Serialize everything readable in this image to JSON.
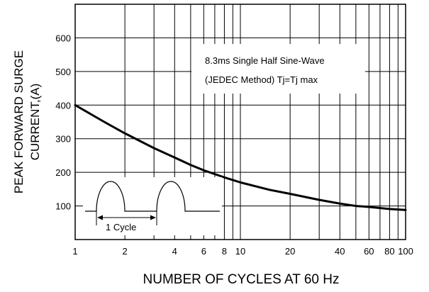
{
  "chart_data": {
    "type": "line",
    "title": "",
    "xlabel": "NUMBER OF CYCLES AT 60 Hz",
    "ylabel_lines": [
      "PEAK FORWARD SURGE",
      "CURRENT,(A)"
    ],
    "x_scale": "log",
    "xlim": [
      1,
      100
    ],
    "ylim": [
      0,
      700
    ],
    "grid": true,
    "x_ticks": [
      1,
      2,
      4,
      6,
      8,
      10,
      20,
      40,
      60,
      80,
      100
    ],
    "x_tick_labels": [
      "1",
      "2",
      "4",
      "6",
      "8",
      "10",
      "20",
      "40",
      "60",
      "80",
      "100"
    ],
    "x_minor_grid": [
      3,
      5,
      7,
      9,
      30,
      50,
      70,
      90
    ],
    "y_ticks": [
      100,
      200,
      300,
      400,
      500,
      600
    ],
    "y_tick_labels": [
      "100",
      "200",
      "300",
      "400",
      "500",
      "600"
    ],
    "series": [
      {
        "x": [
          1,
          1.5,
          2,
          3,
          4,
          5,
          6,
          8,
          10,
          15,
          20,
          30,
          40,
          50,
          60,
          80,
          100
        ],
        "y": [
          400,
          350,
          316,
          272,
          244,
          222,
          206,
          185,
          170,
          148,
          136,
          118,
          107,
          100,
          97,
          91,
          88
        ]
      }
    ],
    "annotations": [
      "8.3ms Single Half Sine-Wave",
      "(JEDEC Method) Tj=Tj max"
    ],
    "inset": {
      "label": "1 Cycle"
    }
  }
}
